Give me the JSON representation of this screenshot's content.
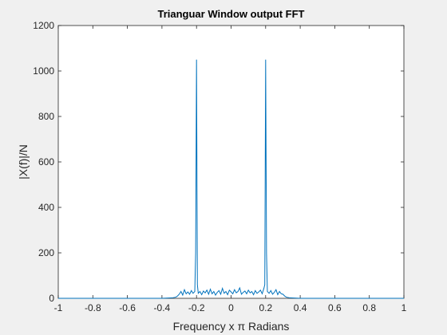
{
  "chart_data": {
    "type": "line",
    "title": "Trianguar Window output FFT",
    "xlabel": "Frequency x π Radians",
    "ylabel": "|X(f)|/N",
    "xlim": [
      -1,
      1
    ],
    "ylim": [
      0,
      1200
    ],
    "xticks": [
      "-1",
      "-0.8",
      "-0.6",
      "-0.4",
      "-0.2",
      "0",
      "0.2",
      "0.4",
      "0.6",
      "0.8",
      "1"
    ],
    "xtick_values": [
      -1,
      -0.8,
      -0.6,
      -0.4,
      -0.2,
      0,
      0.2,
      0.4,
      0.6,
      0.8,
      1
    ],
    "yticks": [
      "0",
      "200",
      "400",
      "600",
      "800",
      "1000",
      "1200"
    ],
    "ytick_values": [
      0,
      200,
      400,
      600,
      800,
      1000,
      1200
    ],
    "grid": false,
    "series_color": "#0072BD",
    "series": [
      {
        "x": [
          -1,
          -0.4,
          -0.34,
          -0.32,
          -0.31,
          -0.3,
          -0.29,
          -0.28,
          -0.27,
          -0.26,
          -0.25,
          -0.24,
          -0.23,
          -0.22,
          -0.21,
          -0.205,
          -0.2,
          -0.195,
          -0.19,
          -0.18,
          -0.17,
          -0.16,
          -0.15,
          -0.14,
          -0.13,
          -0.12,
          -0.11,
          -0.1,
          -0.09,
          -0.08,
          -0.07,
          -0.06,
          -0.05,
          -0.04,
          -0.03,
          -0.02,
          -0.01,
          0,
          0.01,
          0.02,
          0.03,
          0.04,
          0.05,
          0.06,
          0.07,
          0.08,
          0.09,
          0.1,
          0.11,
          0.12,
          0.13,
          0.14,
          0.15,
          0.16,
          0.17,
          0.18,
          0.19,
          0.195,
          0.2,
          0.205,
          0.21,
          0.22,
          0.23,
          0.24,
          0.25,
          0.26,
          0.27,
          0.28,
          0.29,
          0.3,
          0.31,
          0.32,
          0.34,
          0.4,
          1
        ],
        "y": [
          0,
          0,
          2,
          5,
          10,
          18,
          30,
          14,
          38,
          20,
          28,
          18,
          34,
          22,
          30,
          200,
          1050,
          60,
          22,
          30,
          16,
          32,
          24,
          36,
          18,
          40,
          20,
          30,
          14,
          26,
          34,
          18,
          44,
          22,
          30,
          16,
          36,
          28,
          20,
          38,
          24,
          30,
          46,
          18,
          26,
          32,
          20,
          36,
          24,
          30,
          16,
          34,
          22,
          28,
          36,
          20,
          44,
          60,
          1050,
          200,
          30,
          22,
          34,
          18,
          26,
          38,
          16,
          30,
          20,
          18,
          10,
          5,
          2,
          0,
          0
        ]
      }
    ]
  }
}
